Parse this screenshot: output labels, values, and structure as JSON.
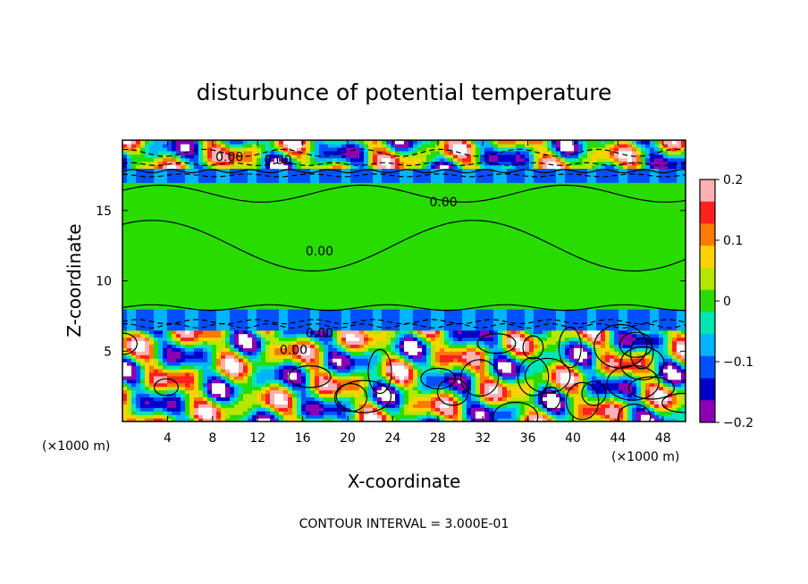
{
  "chart_data": {
    "type": "heatmap",
    "title": "disturbunce of potential temperature",
    "xlabel": "X-coordinate",
    "ylabel": "Z-coordinate",
    "x_unit_label": "(×1000 m)",
    "z_unit_label": "(×1000 m)",
    "xlim": [
      0,
      50
    ],
    "ylim": [
      0,
      20
    ],
    "x_ticks": [
      4,
      8,
      12,
      16,
      20,
      24,
      28,
      32,
      36,
      40,
      44,
      48
    ],
    "y_ticks": [
      5,
      10,
      15
    ],
    "colorbar": {
      "range": [
        -0.2,
        0.2
      ],
      "tick_values": [
        0.2,
        0.1,
        0,
        -0.1,
        -0.2
      ],
      "tick_labels": [
        "0.2",
        "0.1",
        "0",
        "−0.1",
        "−0.2"
      ],
      "colors": [
        "#ffb0b0",
        "#ff2020",
        "#ff7a00",
        "#ffd200",
        "#b4e600",
        "#28dc00",
        "#00e6b4",
        "#00b4ff",
        "#0050ff",
        "#0000c8",
        "#8c00b4"
      ]
    },
    "contour_labels": [
      "0.00",
      "0.00",
      "0.00",
      "0.00",
      "0.00",
      "0.00"
    ],
    "contour_interval": "CONTOUR INTERVAL = 3.000E-01",
    "layers": [
      {
        "z_range": [
          0,
          6.5
        ],
        "description_level": "turbulent",
        "dominant_value": 0
      },
      {
        "z_range": [
          6.5,
          8
        ],
        "dominant_value": -0.1
      },
      {
        "z_range": [
          8,
          17
        ],
        "dominant_value": 0
      },
      {
        "z_range": [
          17,
          18
        ],
        "dominant_value": -0.1
      },
      {
        "z_range": [
          18,
          20
        ],
        "description_level": "turbulent",
        "dominant_value": 0
      }
    ]
  }
}
